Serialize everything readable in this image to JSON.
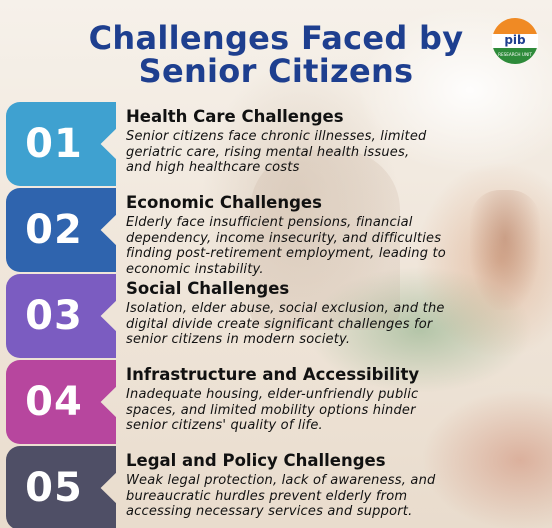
{
  "title": {
    "line1": "Challenges Faced by",
    "line2": "Senior Citizens"
  },
  "logo": {
    "text": "pib",
    "subtext": "RESEARCH UNIT",
    "colors": [
      "#f08a24",
      "#ffffff",
      "#2e8b3a"
    ]
  },
  "items": [
    {
      "number": "01",
      "heading": "Health Care Challenges",
      "desc": [
        "Senior citizens face chronic illnesses, limited",
        "geriatric care, rising mental health issues,",
        "and high healthcare costs"
      ],
      "color": "#3fa1d0"
    },
    {
      "number": "02",
      "heading": "Economic Challenges",
      "desc": [
        "Elderly face insufficient pensions, financial",
        "dependency, income insecurity, and difficulties",
        "finding post-retirement employment, leading to",
        "economic instability."
      ],
      "color": "#2f64ae"
    },
    {
      "number": "03",
      "heading": "Social Challenges",
      "desc": [
        "Isolation, elder abuse, social exclusion, and the",
        "digital divide create significant challenges for",
        "senior citizens in modern society."
      ],
      "color": "#7b5cc1"
    },
    {
      "number": "04",
      "heading": "Infrastructure and Accessibility",
      "desc": [
        "Inadequate housing, elder-unfriendly public",
        "spaces, and limited mobility options hinder",
        "senior citizens' quality of life."
      ],
      "color": "#b7469e"
    },
    {
      "number": "05",
      "heading": "Legal and Policy Challenges",
      "desc": [
        "Weak legal protection, lack of awareness, and",
        "bureaucratic hurdles prevent elderly from",
        "accessing necessary services and support."
      ],
      "color": "#4f4f66"
    }
  ]
}
